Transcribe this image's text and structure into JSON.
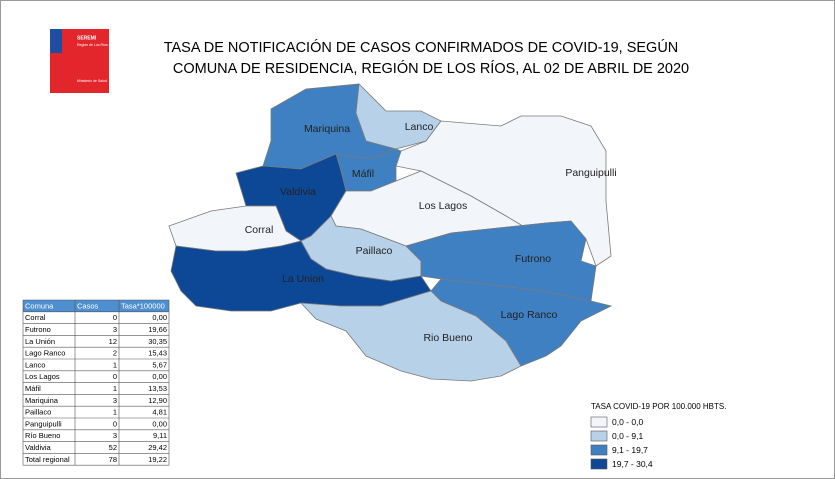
{
  "logo": {
    "name": "SEREMI",
    "region": "Región de Los Ríos",
    "ministry": "Ministerio de Salud"
  },
  "title": [
    "TASA DE NOTIFICACIÓN DE CASOS CONFIRMADOS DE COVID-19, SEGÚN",
    "COMUNA DE RESIDENCIA, REGIÓN DE LOS RÍOS, AL 02 DE ABRIL DE 2020"
  ],
  "table": {
    "header": [
      "Comuna",
      "Casos",
      "Tasa*100000"
    ],
    "rows": [
      [
        "Corral",
        "0",
        "0,00"
      ],
      [
        "Futrono",
        "3",
        "19,66"
      ],
      [
        "La Unión",
        "12",
        "30,35"
      ],
      [
        "Lago Ranco",
        "2",
        "15,43"
      ],
      [
        "Lanco",
        "1",
        "5,67"
      ],
      [
        "Los Lagos",
        "0",
        "0,00"
      ],
      [
        "Máfil",
        "1",
        "13,53"
      ],
      [
        "Mariquina",
        "3",
        "12,90"
      ],
      [
        "Paillaco",
        "1",
        "4,81"
      ],
      [
        "Panguipulli",
        "0",
        "0,00"
      ],
      [
        "Río Bueno",
        "3",
        "9,11"
      ],
      [
        "Valdivia",
        "52",
        "29,42"
      ],
      [
        "Total regional",
        "78",
        "19,22"
      ]
    ]
  },
  "legend": {
    "title": "TASA COVID-19 POR 100.000 HBTS.",
    "items": [
      {
        "label": "0,0 - 0,0",
        "color": "#f2f6fb"
      },
      {
        "label": "0,0 - 9,1",
        "color": "#b7d1e8"
      },
      {
        "label": "9,1 - 19,7",
        "color": "#3e80c2"
      },
      {
        "label": "19,7 - 30,4",
        "color": "#0d4897"
      }
    ]
  },
  "map": {
    "regions": [
      {
        "label": "Mariquina",
        "class": 2
      },
      {
        "label": "Lanco",
        "class": 1
      },
      {
        "label": "Panguipulli",
        "class": 0
      },
      {
        "label": "Máfil",
        "class": 2
      },
      {
        "label": "Valdivia",
        "class": 3
      },
      {
        "label": "Los Lagos",
        "class": 0
      },
      {
        "label": "Corral",
        "class": 0
      },
      {
        "label": "Paillaco",
        "class": 1
      },
      {
        "label": "Futrono",
        "class": 2
      },
      {
        "label": "La Union",
        "class": 3
      },
      {
        "label": "Lago Ranco",
        "class": 2
      },
      {
        "label": "Rio Bueno",
        "class": 1
      }
    ]
  }
}
